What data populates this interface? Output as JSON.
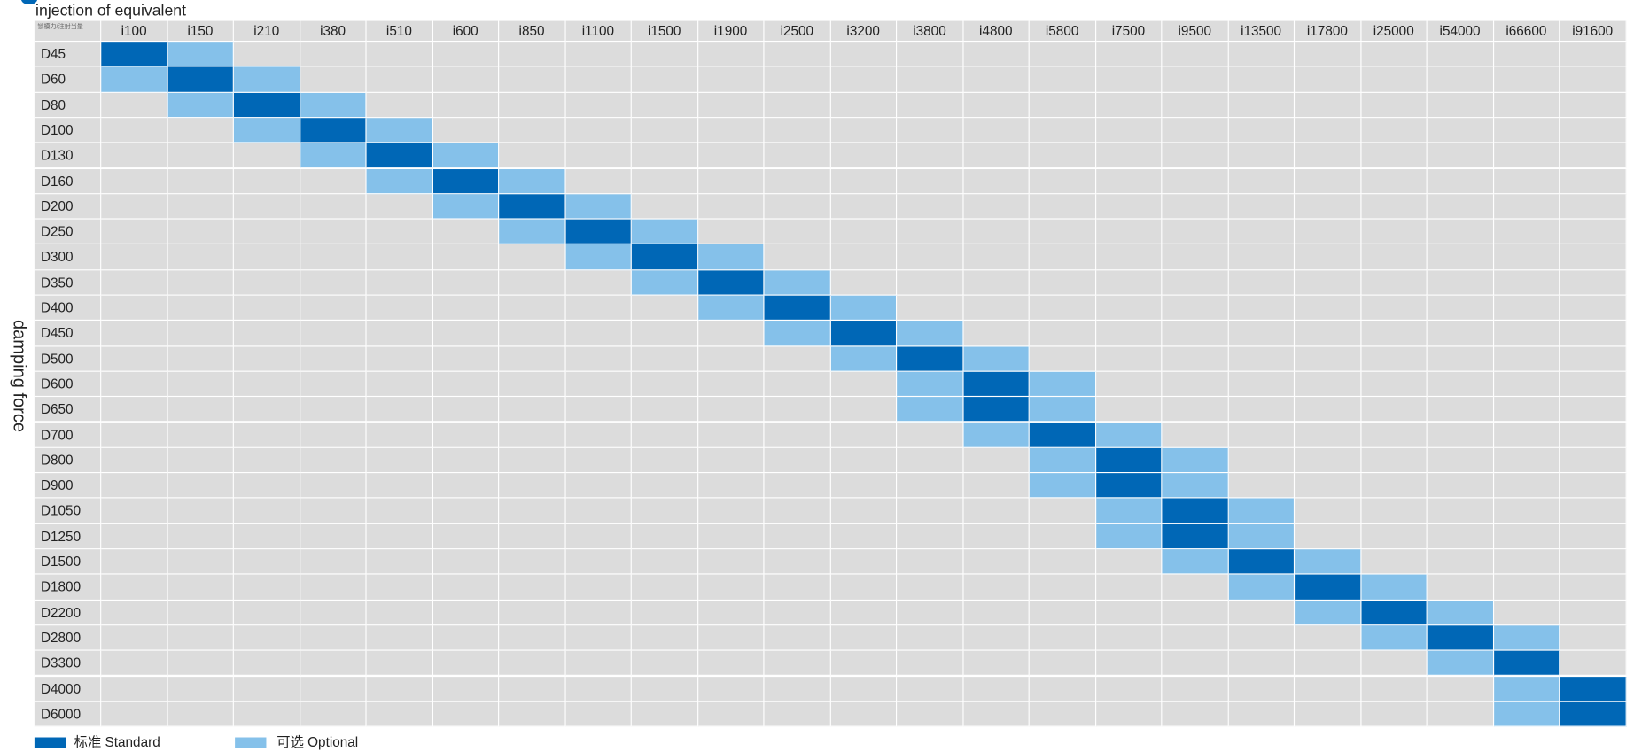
{
  "header": {
    "title": "injection of equivalent",
    "corner": "锁模力/注射当量",
    "row_axis": "damping force"
  },
  "table": {
    "columns": [
      "i100",
      "i150",
      "i210",
      "i380",
      "i510",
      "i600",
      "i850",
      "i1100",
      "i1500",
      "i1900",
      "i2500",
      "i3200",
      "i3800",
      "i4800",
      "i5800",
      "i7500",
      "i9500",
      "i13500",
      "i17800",
      "i25000",
      "i54000",
      "i66600",
      "i91600"
    ],
    "rows": [
      {
        "label": "D45",
        "standard": [
          "i100"
        ],
        "optional": [
          "i150"
        ]
      },
      {
        "label": "D60",
        "standard": [
          "i150"
        ],
        "optional": [
          "i100",
          "i210"
        ]
      },
      {
        "label": "D80",
        "standard": [
          "i210"
        ],
        "optional": [
          "i150",
          "i380"
        ]
      },
      {
        "label": "D100",
        "standard": [
          "i380"
        ],
        "optional": [
          "i210",
          "i510"
        ]
      },
      {
        "label": "D130",
        "standard": [
          "i510"
        ],
        "optional": [
          "i380",
          "i600"
        ]
      },
      {
        "label": "D160",
        "standard": [
          "i600"
        ],
        "optional": [
          "i510",
          "i850"
        ]
      },
      {
        "label": "D200",
        "standard": [
          "i850"
        ],
        "optional": [
          "i600",
          "i1100"
        ]
      },
      {
        "label": "D250",
        "standard": [
          "i1100"
        ],
        "optional": [
          "i850",
          "i1500"
        ]
      },
      {
        "label": "D300",
        "standard": [
          "i1500"
        ],
        "optional": [
          "i1100",
          "i1900"
        ]
      },
      {
        "label": "D350",
        "standard": [
          "i1900"
        ],
        "optional": [
          "i1500",
          "i2500"
        ]
      },
      {
        "label": "D400",
        "standard": [
          "i2500"
        ],
        "optional": [
          "i1900",
          "i3200"
        ]
      },
      {
        "label": "D450",
        "standard": [
          "i3200"
        ],
        "optional": [
          "i2500",
          "i3800"
        ]
      },
      {
        "label": "D500",
        "standard": [
          "i3800"
        ],
        "optional": [
          "i3200",
          "i4800"
        ]
      },
      {
        "label": "D600",
        "standard": [
          "i4800"
        ],
        "optional": [
          "i3800",
          "i5800"
        ]
      },
      {
        "label": "D650",
        "standard": [
          "i4800"
        ],
        "optional": [
          "i3800",
          "i5800"
        ]
      },
      {
        "label": "D700",
        "standard": [
          "i5800"
        ],
        "optional": [
          "i4800",
          "i7500"
        ]
      },
      {
        "label": "D800",
        "standard": [
          "i7500"
        ],
        "optional": [
          "i5800",
          "i9500"
        ]
      },
      {
        "label": "D900",
        "standard": [
          "i7500"
        ],
        "optional": [
          "i5800",
          "i9500"
        ]
      },
      {
        "label": "D1050",
        "standard": [
          "i9500"
        ],
        "optional": [
          "i7500",
          "i13500"
        ]
      },
      {
        "label": "D1250",
        "standard": [
          "i9500"
        ],
        "optional": [
          "i7500",
          "i13500"
        ]
      },
      {
        "label": "D1500",
        "standard": [
          "i13500"
        ],
        "optional": [
          "i9500",
          "i17800"
        ]
      },
      {
        "label": "D1800",
        "standard": [
          "i17800"
        ],
        "optional": [
          "i13500",
          "i25000"
        ]
      },
      {
        "label": "D2200",
        "standard": [
          "i25000"
        ],
        "optional": [
          "i17800",
          "i54000"
        ]
      },
      {
        "label": "D2800",
        "standard": [
          "i54000"
        ],
        "optional": [
          "i25000",
          "i66600"
        ]
      },
      {
        "label": "D3300",
        "standard": [
          "i66600"
        ],
        "optional": [
          "i54000"
        ]
      },
      {
        "label": "D4000",
        "standard": [
          "i91600"
        ],
        "optional": [
          "i66600"
        ]
      },
      {
        "label": "D6000",
        "standard": [
          "i91600"
        ],
        "optional": [
          "i66600"
        ]
      }
    ]
  },
  "legend": {
    "standard": "标准 Standard",
    "optional": "可选 Optional"
  }
}
